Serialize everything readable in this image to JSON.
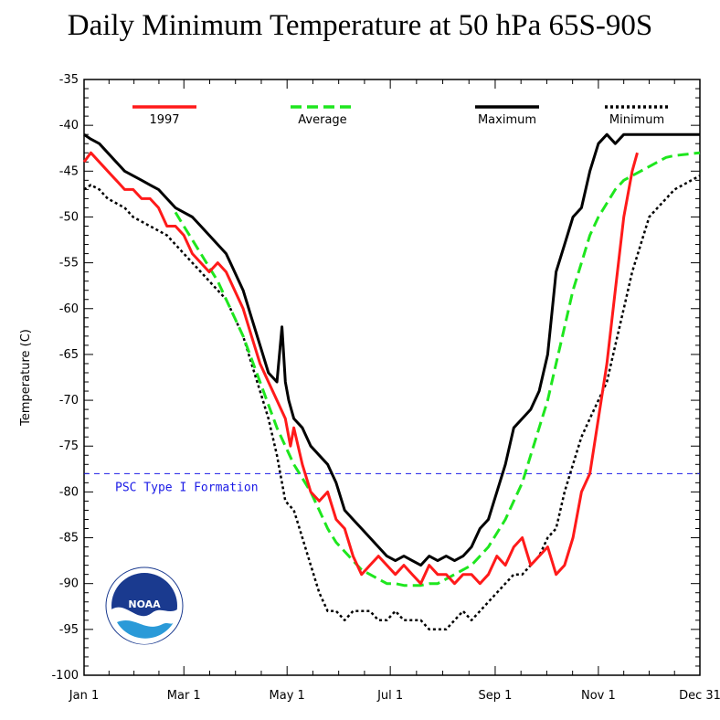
{
  "chart_data": {
    "type": "line",
    "title": "Daily Minimum Temperature at 50 hPa 65S-90S",
    "ylabel": "Temperature (C)",
    "xlabel": "",
    "ylim": [
      -100,
      -35
    ],
    "xlim_days": [
      1,
      365
    ],
    "yticks": [
      -35,
      -40,
      -45,
      -50,
      -55,
      -60,
      -65,
      -70,
      -75,
      -80,
      -85,
      -90,
      -95,
      -100
    ],
    "xticks": [
      {
        "label": "Jan 1",
        "day": 1
      },
      {
        "label": "Mar 1",
        "day": 60
      },
      {
        "label": "May 1",
        "day": 121
      },
      {
        "label": "Jul 1",
        "day": 182
      },
      {
        "label": "Sep 1",
        "day": 244
      },
      {
        "label": "Nov 1",
        "day": 305
      },
      {
        "label": "Dec 31",
        "day": 365
      }
    ],
    "legend_position": "top",
    "reference_line": {
      "label": "PSC Type I Formation",
      "y": -78,
      "color": "#1a1ae6"
    },
    "series": [
      {
        "name": "1997",
        "color": "#ff1a1a",
        "style": "solid",
        "x": [
          1,
          5,
          10,
          15,
          20,
          25,
          30,
          35,
          40,
          45,
          50,
          55,
          60,
          65,
          70,
          75,
          80,
          85,
          90,
          95,
          100,
          105,
          110,
          115,
          120,
          123,
          125,
          130,
          135,
          140,
          145,
          150,
          155,
          160,
          165,
          170,
          175,
          180,
          185,
          190,
          195,
          200,
          205,
          210,
          215,
          220,
          225,
          230,
          235,
          240,
          245,
          250,
          255,
          260,
          265,
          270,
          275,
          280,
          285,
          290,
          295,
          300,
          305,
          310,
          315,
          320,
          325,
          328
        ],
        "y": [
          -44,
          -43,
          -44,
          -45,
          -46,
          -47,
          -47,
          -48,
          -48,
          -49,
          -51,
          -51,
          -52,
          -54,
          -55,
          -56,
          -55,
          -56,
          -58,
          -60,
          -63,
          -66,
          -68,
          -70,
          -72,
          -75,
          -73,
          -77,
          -80,
          -81,
          -80,
          -83,
          -84,
          -87,
          -89,
          -88,
          -87,
          -88,
          -89,
          -88,
          -89,
          -90,
          -88,
          -89,
          -89,
          -90,
          -89,
          -89,
          -90,
          -89,
          -87,
          -88,
          -86,
          -85,
          -88,
          -87,
          -86,
          -89,
          -88,
          -85,
          -80,
          -78,
          -72,
          -66,
          -58,
          -50,
          -45,
          -43
        ]
      },
      {
        "name": "Average",
        "color": "#1ee61e",
        "style": "dashed",
        "x": [
          55,
          60,
          65,
          70,
          75,
          80,
          85,
          90,
          95,
          100,
          105,
          110,
          115,
          120,
          125,
          130,
          135,
          140,
          145,
          150,
          155,
          160,
          165,
          170,
          175,
          180,
          185,
          190,
          195,
          200,
          205,
          210,
          215,
          220,
          225,
          230,
          235,
          240,
          245,
          250,
          255,
          260,
          265,
          270,
          275,
          280,
          285,
          290,
          295,
          300,
          305,
          310,
          315,
          320,
          325,
          330,
          335,
          340,
          345,
          350,
          355,
          360,
          365
        ],
        "y": [
          -49.5,
          -51,
          -52.5,
          -54,
          -55.5,
          -57,
          -59,
          -61,
          -63,
          -65.5,
          -68,
          -70.5,
          -73,
          -75,
          -77,
          -78.5,
          -80,
          -82,
          -84,
          -85.5,
          -86.5,
          -87.5,
          -88.5,
          -89,
          -89.5,
          -90,
          -90,
          -90.2,
          -90.2,
          -90.2,
          -90,
          -90,
          -89.5,
          -89,
          -88.5,
          -88,
          -87,
          -86,
          -84.5,
          -83,
          -81,
          -79,
          -76,
          -73,
          -70,
          -66,
          -62,
          -58,
          -55,
          -52,
          -50,
          -48.5,
          -47,
          -46,
          -45.5,
          -45,
          -44.5,
          -44,
          -43.5,
          -43.3,
          -43.2,
          -43.1,
          -43
        ]
      },
      {
        "name": "Maximum",
        "color": "#000000",
        "style": "solid",
        "x": [
          1,
          5,
          10,
          15,
          20,
          25,
          30,
          35,
          40,
          45,
          50,
          55,
          60,
          65,
          70,
          75,
          80,
          85,
          90,
          95,
          100,
          105,
          110,
          115,
          118,
          120,
          122,
          125,
          130,
          135,
          140,
          145,
          150,
          155,
          160,
          165,
          170,
          175,
          180,
          185,
          190,
          195,
          200,
          205,
          210,
          215,
          220,
          225,
          230,
          235,
          240,
          245,
          250,
          255,
          260,
          265,
          270,
          275,
          280,
          285,
          290,
          295,
          300,
          305,
          310,
          315,
          320,
          325,
          330,
          335,
          340,
          345,
          350,
          355,
          360,
          365
        ],
        "y": [
          -41,
          -41.5,
          -42,
          -43,
          -44,
          -45,
          -45.5,
          -46,
          -46.5,
          -47,
          -48,
          -49,
          -49.5,
          -50,
          -51,
          -52,
          -53,
          -54,
          -56,
          -58,
          -61,
          -64,
          -67,
          -68,
          -62,
          -68,
          -70,
          -72,
          -73,
          -75,
          -76,
          -77,
          -79,
          -82,
          -83,
          -84,
          -85,
          -86,
          -87,
          -87.5,
          -87,
          -87.5,
          -88,
          -87,
          -87.5,
          -87,
          -87.5,
          -87,
          -86,
          -84,
          -83,
          -80,
          -77,
          -73,
          -72,
          -71,
          -69,
          -65,
          -56,
          -53,
          -50,
          -49,
          -45,
          -42,
          -41,
          -42,
          -41,
          -41,
          -41,
          -41,
          -41,
          -41,
          -41,
          -41,
          -41,
          -41
        ]
      },
      {
        "name": "Minimum",
        "color": "#000000",
        "style": "dotted",
        "x": [
          1,
          5,
          10,
          15,
          20,
          25,
          30,
          35,
          40,
          45,
          50,
          55,
          60,
          65,
          70,
          75,
          80,
          85,
          90,
          95,
          100,
          105,
          110,
          115,
          120,
          125,
          130,
          135,
          140,
          145,
          150,
          155,
          160,
          165,
          170,
          175,
          180,
          185,
          190,
          195,
          200,
          205,
          210,
          215,
          220,
          225,
          230,
          235,
          240,
          245,
          250,
          255,
          260,
          265,
          270,
          275,
          280,
          285,
          290,
          295,
          300,
          305,
          310,
          315,
          320,
          325,
          330,
          335,
          340,
          345,
          350,
          355,
          360,
          365
        ],
        "y": [
          -47,
          -46.5,
          -47,
          -48,
          -48.5,
          -49,
          -50,
          -50.5,
          -51,
          -51.5,
          -52,
          -53,
          -54,
          -55,
          -56,
          -57,
          -58,
          -59,
          -61,
          -63,
          -66,
          -69,
          -72,
          -76,
          -81,
          -82,
          -85,
          -88,
          -91,
          -93,
          -93,
          -94,
          -93,
          -93,
          -93,
          -94,
          -94,
          -93,
          -94,
          -94,
          -94,
          -95,
          -95,
          -95,
          -94,
          -93,
          -94,
          -93,
          -92,
          -91,
          -90,
          -89,
          -89,
          -88,
          -87,
          -85,
          -84,
          -80,
          -77,
          -74,
          -72,
          -70,
          -68,
          -64,
          -60,
          -56,
          -53,
          -50,
          -49,
          -48,
          -47,
          -46.5,
          -46,
          -45.5
        ]
      }
    ]
  },
  "logo": {
    "text": "NOAA"
  }
}
